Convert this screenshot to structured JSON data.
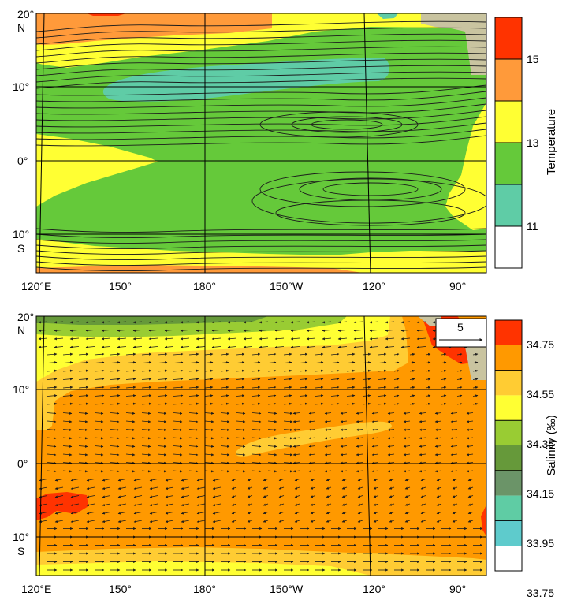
{
  "colors": {
    "land": "#c9c4a0",
    "gridline": "#000000",
    "streamline": "#1c1c1c",
    "temp": {
      "t11": "#5fcca6",
      "t12": "#65c93a",
      "t13": "#ffff33",
      "t14": "#ff9a3a",
      "t15": "#ff3300"
    },
    "sal": {
      "s3375": "#5ecbcc",
      "s3395": "#5fcca4",
      "s3415a": "#6b9468",
      "s3415b": "#66993a",
      "s3435": "#99cc33",
      "s3455a": "#ffff33",
      "s3455b": "#ffcc33",
      "s3475": "#ff9900",
      "s35": "#ff3300"
    }
  },
  "top_panel": {
    "lat_ticks": [
      {
        "label": "20°",
        "sub": "N"
      },
      {
        "label": "10°",
        "sub": ""
      },
      {
        "label": "0°",
        "sub": ""
      },
      {
        "label": "10°",
        "sub": "S"
      }
    ],
    "lon_ticks": [
      "120°E",
      "150°",
      "180°",
      "150°W",
      "120°",
      "90°"
    ],
    "colorbar": {
      "title": "Temperature",
      "labels": [
        "15",
        "13",
        "11"
      ],
      "colors": [
        "#ff3300",
        "#ff9a3a",
        "#ffff33",
        "#65c93a",
        "#5fcca6",
        "#ffffff"
      ]
    }
  },
  "bottom_panel": {
    "lat_ticks": [
      {
        "label": "20°",
        "sub": "N"
      },
      {
        "label": "10°",
        "sub": ""
      },
      {
        "label": "0°",
        "sub": ""
      },
      {
        "label": "10°",
        "sub": "S"
      }
    ],
    "lon_ticks": [
      "120°E",
      "150°",
      "180°",
      "150°W",
      "120°",
      "90°"
    ],
    "reference_vector": "5",
    "colorbar": {
      "title": "Salinity (‰)",
      "labels": [
        "34.75",
        "34.55",
        "34.35",
        "34.15",
        "33.95",
        "33.75"
      ],
      "colors": [
        "#ff3300",
        "#ff9900",
        "#ffcc33",
        "#ffff33",
        "#99cc33",
        "#66993a",
        "#6b9468",
        "#5fcca4",
        "#5ecbcc",
        "#ffffff"
      ]
    }
  }
}
